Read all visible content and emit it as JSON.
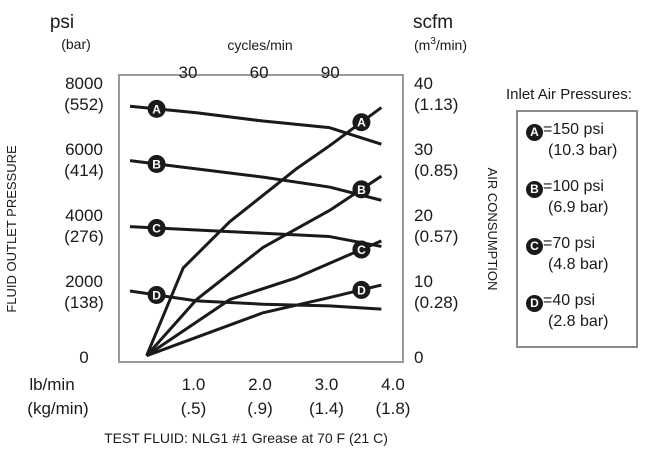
{
  "chart_data": {
    "type": "line",
    "title": "",
    "left_axis": {
      "units_primary": "psi",
      "units_secondary": "(bar)",
      "label": "FLUID OUTLET PRESSURE",
      "ticks": [
        {
          "value": 8000,
          "primary": "8000",
          "secondary": "(552)"
        },
        {
          "value": 6000,
          "primary": "6000",
          "secondary": "(414)"
        },
        {
          "value": 4000,
          "primary": "4000",
          "secondary": "(276)"
        },
        {
          "value": 2000,
          "primary": "2000",
          "secondary": "(138)"
        },
        {
          "value": 0,
          "primary": "0",
          "secondary": ""
        }
      ],
      "ylim": [
        0,
        8000
      ]
    },
    "right_axis": {
      "units_primary": "scfm",
      "units_secondary": "(m3/min)",
      "label": "AIR CONSUMPTION",
      "ticks": [
        {
          "value": 40,
          "primary": "40",
          "secondary": "(1.13)"
        },
        {
          "value": 30,
          "primary": "30",
          "secondary": "(0.85)"
        },
        {
          "value": 20,
          "primary": "20",
          "secondary": "(0.57)"
        },
        {
          "value": 10,
          "primary": "10",
          "secondary": "(0.28)"
        },
        {
          "value": 0,
          "primary": "0",
          "secondary": ""
        }
      ],
      "ylim": [
        0,
        40
      ]
    },
    "top_axis": {
      "label": "cycles/min",
      "ticks": [
        {
          "value": 30,
          "label": "30"
        },
        {
          "value": 60,
          "label": "60"
        },
        {
          "value": 90,
          "label": "90"
        }
      ]
    },
    "bottom_axis": {
      "units_primary": "lb/min",
      "units_secondary": "(kg/min)",
      "label": "TEST FLUID: NLG1 #1 Grease at 70 F (21 C)",
      "ticks": [
        {
          "value": 1.0,
          "primary": "1.0",
          "secondary": "(.5)"
        },
        {
          "value": 2.0,
          "primary": "2.0",
          "secondary": "(.9)"
        },
        {
          "value": 3.0,
          "primary": "3.0",
          "secondary": "(1.4)"
        },
        {
          "value": 4.0,
          "primary": "4.0",
          "secondary": "(1.8)"
        }
      ],
      "xlim": [
        0,
        4.0
      ]
    },
    "grid": false,
    "legend_placement": "right",
    "legend_title": "Inlet Air Pressures:",
    "series": [
      {
        "marker": "A",
        "pressure": "=150 psi",
        "pressure_metric": "(10.3 bar)",
        "fluid_pressure": [
          [
            0,
            7600
          ],
          [
            1.0,
            7400
          ],
          [
            2.0,
            7150
          ],
          [
            3.0,
            6950
          ],
          [
            3.78,
            6450
          ]
        ],
        "air_consumption": [
          [
            0.25,
            0.2
          ],
          [
            0.8,
            13.5
          ],
          [
            1.5,
            20.5
          ],
          [
            2.5,
            28.5
          ],
          [
            3.0,
            32
          ],
          [
            3.78,
            37.8
          ]
        ]
      },
      {
        "marker": "B",
        "pressure": "=100 psi",
        "pressure_metric": "(6.9 bar)",
        "fluid_pressure": [
          [
            0,
            5950
          ],
          [
            1.0,
            5700
          ],
          [
            2.0,
            5450
          ],
          [
            3.0,
            5150
          ],
          [
            3.78,
            4750
          ]
        ],
        "air_consumption": [
          [
            0.25,
            0.2
          ],
          [
            1.0,
            8.7
          ],
          [
            2.0,
            16.6
          ],
          [
            3.0,
            22.2
          ],
          [
            3.78,
            27.4
          ]
        ]
      },
      {
        "marker": "C",
        "pressure": "=70 psi",
        "pressure_metric": "(4.8 bar)",
        "fluid_pressure": [
          [
            0,
            3950
          ],
          [
            1.0,
            3850
          ],
          [
            2.0,
            3750
          ],
          [
            3.0,
            3650
          ],
          [
            3.78,
            3350
          ]
        ],
        "air_consumption": [
          [
            0.25,
            0.2
          ],
          [
            1.5,
            8.7
          ],
          [
            2.5,
            12.0
          ],
          [
            3.78,
            17.6
          ]
        ]
      },
      {
        "marker": "D",
        "pressure": "=40 psi",
        "pressure_metric": "(2.8 bar)",
        "fluid_pressure": [
          [
            0,
            2000
          ],
          [
            1.0,
            1700
          ],
          [
            2.0,
            1600
          ],
          [
            3.0,
            1550
          ],
          [
            3.78,
            1450
          ]
        ],
        "air_consumption": [
          [
            0.25,
            0.2
          ],
          [
            2.0,
            6.7
          ],
          [
            3.0,
            9.0
          ],
          [
            3.78,
            10.9
          ]
        ]
      }
    ]
  }
}
